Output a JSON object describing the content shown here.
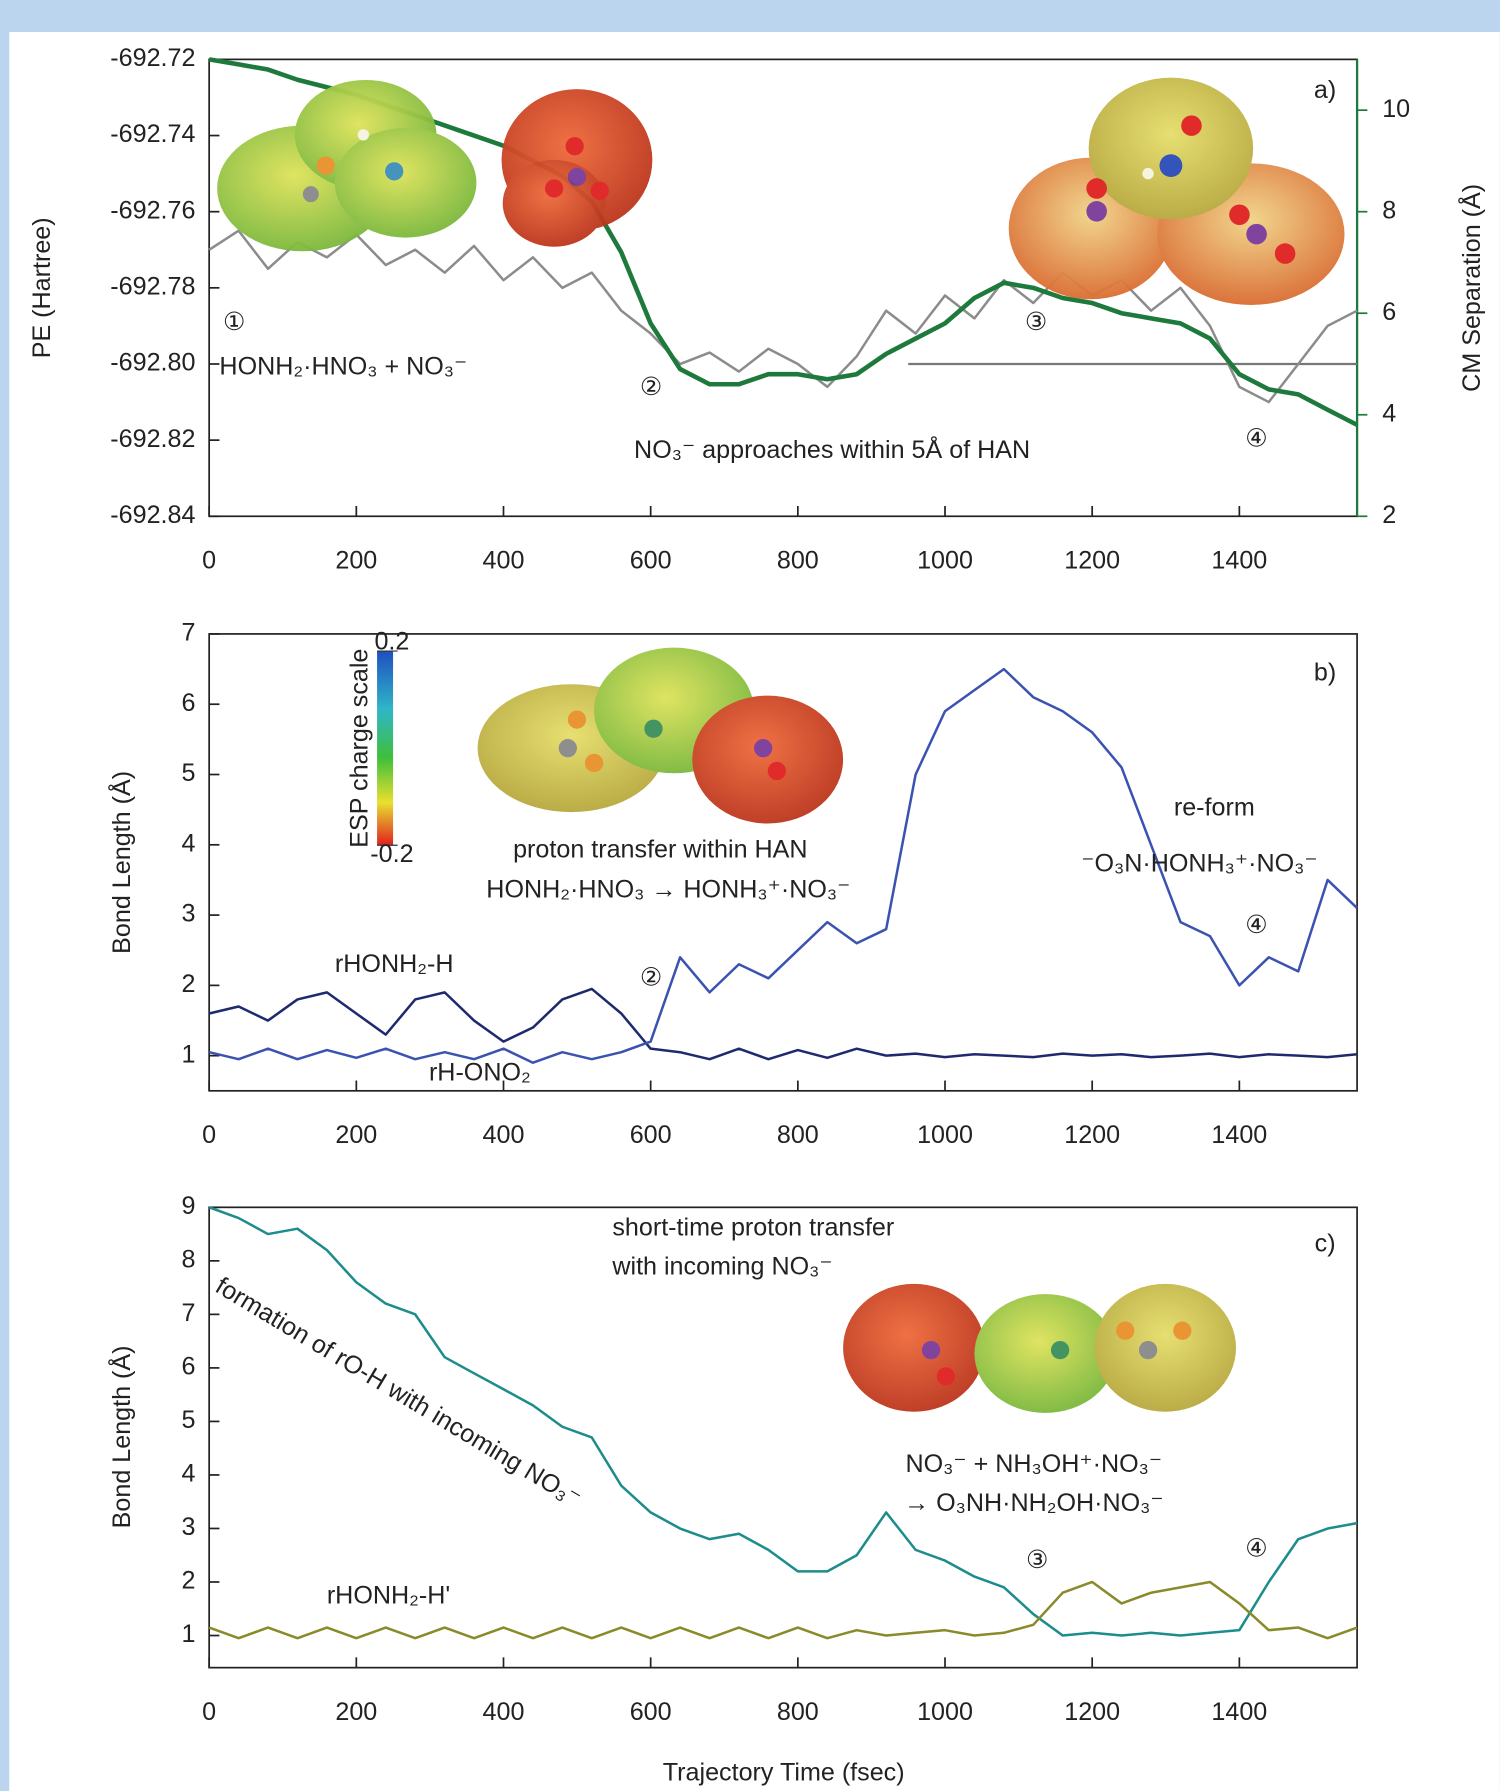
{
  "chart_data": [
    {
      "type": "line",
      "y_label": "PE (Hartree)",
      "y2_label": "CM Separation (Å)",
      "x": [
        0,
        40,
        80,
        120,
        160,
        200,
        240,
        280,
        320,
        360,
        400,
        440,
        480,
        520,
        560,
        600,
        640,
        680,
        720,
        760,
        800,
        840,
        880,
        920,
        960,
        1000,
        1040,
        1080,
        1120,
        1160,
        1200,
        1240,
        1280,
        1320,
        1360,
        1400,
        1440,
        1480,
        1520,
        1560
      ],
      "xlim": [
        0,
        1560
      ],
      "xticks": [
        0,
        200,
        400,
        600,
        800,
        1000,
        1200,
        1400
      ],
      "ylim": [
        -692.84,
        -692.72
      ],
      "yticks": [
        -692.72,
        -692.74,
        -692.76,
        -692.78,
        {
          "value": -692.8,
          "label": "-692.80"
        },
        -692.82,
        -692.84
      ],
      "y2lim": [
        2,
        11
      ],
      "y2ticks": [
        2,
        4,
        6,
        8,
        10
      ],
      "reference_line": {
        "axis": "y2",
        "value": 5
      },
      "series": [
        {
          "color": "#8c8c8c",
          "values": [
            -692.77,
            -692.765,
            -692.775,
            -692.768,
            -692.772,
            -692.766,
            -692.774,
            -692.77,
            -692.776,
            -692.769,
            -692.778,
            -692.772,
            -692.78,
            -692.776,
            -692.786,
            -692.792,
            -692.8,
            -692.797,
            -692.802,
            -692.796,
            -692.8,
            -692.806,
            -692.798,
            -692.786,
            -692.792,
            -692.782,
            -692.788,
            -692.778,
            -692.784,
            -692.776,
            -692.782,
            -692.778,
            -692.786,
            -692.78,
            -692.79,
            -692.806,
            -692.81,
            -692.8,
            -692.79,
            -692.786
          ]
        },
        {
          "color": "#1e7a3c",
          "axis": "y2",
          "values": [
            11.0,
            10.9,
            10.8,
            10.6,
            10.45,
            10.3,
            10.1,
            9.9,
            9.7,
            9.5,
            9.3,
            9.0,
            8.7,
            8.2,
            7.2,
            5.8,
            4.9,
            4.6,
            4.6,
            4.8,
            4.8,
            4.7,
            4.8,
            5.2,
            5.5,
            5.8,
            6.3,
            6.6,
            6.5,
            6.3,
            6.2,
            6.0,
            5.9,
            5.8,
            5.5,
            4.8,
            4.5,
            4.4,
            4.1,
            3.8
          ]
        }
      ],
      "annotations": [
        "a)",
        "①",
        "HONH₂·HNO₃ + NO₃⁻",
        "②",
        "NO₃⁻ approaches within 5Å of HAN",
        "③",
        "④"
      ]
    },
    {
      "type": "line",
      "y_label": "Bond Length (Å)",
      "x": [
        0,
        40,
        80,
        120,
        160,
        200,
        240,
        280,
        320,
        360,
        400,
        440,
        480,
        520,
        560,
        600,
        640,
        680,
        720,
        760,
        800,
        840,
        880,
        920,
        960,
        1000,
        1040,
        1080,
        1120,
        1160,
        1200,
        1240,
        1280,
        1320,
        1360,
        1400,
        1440,
        1480,
        1520,
        1560
      ],
      "xlim": [
        0,
        1560
      ],
      "xticks": [
        0,
        200,
        400,
        600,
        800,
        1000,
        1200,
        1400
      ],
      "ylim": [
        0.5,
        7
      ],
      "yticks": [
        1,
        2,
        3,
        4,
        5,
        6,
        7
      ],
      "series": [
        {
          "name": "rHONH₂-H",
          "color": "#1f2a6e",
          "values": [
            1.6,
            1.7,
            1.5,
            1.8,
            1.9,
            1.6,
            1.3,
            1.8,
            1.9,
            1.5,
            1.2,
            1.4,
            1.8,
            1.95,
            1.6,
            1.1,
            1.05,
            0.95,
            1.1,
            0.95,
            1.08,
            0.97,
            1.1,
            1.0,
            1.03,
            0.98,
            1.02,
            1.0,
            0.98,
            1.03,
            1.0,
            1.02,
            0.98,
            1.0,
            1.03,
            0.98,
            1.02,
            1.0,
            0.98,
            1.02
          ]
        },
        {
          "name": "rH-ONO₂",
          "color": "#3b53b0",
          "values": [
            1.05,
            0.95,
            1.1,
            0.95,
            1.08,
            0.97,
            1.1,
            0.95,
            1.05,
            0.95,
            1.1,
            0.9,
            1.05,
            0.95,
            1.05,
            1.2,
            2.4,
            1.9,
            2.3,
            2.1,
            2.5,
            2.9,
            2.6,
            2.8,
            5.0,
            5.9,
            6.2,
            6.5,
            6.1,
            5.9,
            5.6,
            5.1,
            4.0,
            2.9,
            2.7,
            2.0,
            2.4,
            2.2,
            3.5,
            3.1
          ]
        }
      ],
      "colorbar": {
        "label": "ESP charge scale",
        "ticks": [
          0.2,
          -0.2
        ]
      },
      "annotations": [
        "b)",
        "proton transfer within HAN",
        "HONH₂·HNO₃ → HONH₃⁺·NO₃⁻",
        "②",
        "re-form",
        "⁻O₃N·HONH₃⁺·NO₃⁻",
        "④"
      ]
    },
    {
      "type": "line",
      "y_label": "Bond Length (Å)",
      "x_label": "Trajectory Time (fsec)",
      "x": [
        0,
        40,
        80,
        120,
        160,
        200,
        240,
        280,
        320,
        360,
        400,
        440,
        480,
        520,
        560,
        600,
        640,
        680,
        720,
        760,
        800,
        840,
        880,
        920,
        960,
        1000,
        1040,
        1080,
        1120,
        1160,
        1200,
        1240,
        1280,
        1320,
        1360,
        1400,
        1440,
        1480,
        1520,
        1560
      ],
      "xlim": [
        0,
        1560
      ],
      "xticks": [
        0,
        200,
        400,
        600,
        800,
        1000,
        1200,
        1400
      ],
      "ylim": [
        0.4,
        9
      ],
      "yticks": [
        1,
        2,
        3,
        4,
        5,
        6,
        7,
        8,
        9
      ],
      "series": [
        {
          "name": "formation of rO-H with incoming NO₃⁻",
          "color": "#1d8c8c",
          "values": [
            9.0,
            8.8,
            8.5,
            8.6,
            8.2,
            7.6,
            7.2,
            7.0,
            6.2,
            5.9,
            5.6,
            5.3,
            4.9,
            4.7,
            3.8,
            3.3,
            3.0,
            2.8,
            2.9,
            2.6,
            2.2,
            2.2,
            2.5,
            3.3,
            2.6,
            2.4,
            2.1,
            1.9,
            1.4,
            1.0,
            1.05,
            1.0,
            1.05,
            1.0,
            1.05,
            1.1,
            2.0,
            2.8,
            3.0,
            3.1
          ]
        },
        {
          "name": "rHONH₂-H'",
          "color": "#8a8a2a",
          "values": [
            1.15,
            0.95,
            1.15,
            0.95,
            1.15,
            0.95,
            1.15,
            0.95,
            1.15,
            0.95,
            1.15,
            0.95,
            1.15,
            0.95,
            1.15,
            0.95,
            1.15,
            0.95,
            1.15,
            0.95,
            1.15,
            0.95,
            1.1,
            1.0,
            1.05,
            1.1,
            1.0,
            1.05,
            1.2,
            1.8,
            2.0,
            1.6,
            1.8,
            1.9,
            2.0,
            1.6,
            1.1,
            1.15,
            0.95,
            1.15
          ]
        }
      ],
      "annotations": [
        "c)",
        "short-time proton transfer",
        "with incoming NO₃⁻",
        "③",
        "④",
        "NO₃⁻ + NH₃OH⁺·NO₃⁻",
        "→ O₃NH·NH₂OH·NO₃⁻"
      ]
    }
  ]
}
